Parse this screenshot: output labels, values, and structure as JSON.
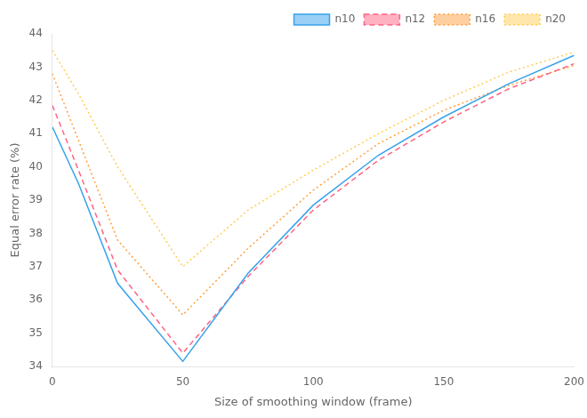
{
  "chart_data": {
    "type": "line",
    "xlabel": "Size of smoothing window (frame)",
    "ylabel": "Equal error rate (%)",
    "x": [
      0,
      10,
      25,
      50,
      75,
      100,
      125,
      150,
      175,
      200
    ],
    "series": [
      {
        "name": "n10",
        "values": [
          41.2,
          39.5,
          36.5,
          34.15,
          36.8,
          38.85,
          40.35,
          41.5,
          42.5,
          43.35
        ],
        "line_style": "solid"
      },
      {
        "name": "n12",
        "values": [
          41.85,
          39.9,
          36.9,
          34.4,
          36.7,
          38.7,
          40.2,
          41.35,
          42.35,
          43.1
        ],
        "line_style": "dashed"
      },
      {
        "name": "n16",
        "values": [
          42.8,
          40.8,
          37.8,
          35.55,
          37.55,
          39.3,
          40.7,
          41.7,
          42.45,
          43.05
        ],
        "line_style": "dotted"
      },
      {
        "name": "n20",
        "values": [
          43.5,
          42.2,
          40.0,
          37.0,
          38.7,
          39.9,
          41.0,
          42.0,
          42.85,
          43.45
        ],
        "line_style": "dotted"
      }
    ],
    "xlim": [
      0,
      200
    ],
    "ylim": [
      34,
      44
    ],
    "xticks": [
      0,
      50,
      100,
      150,
      200
    ],
    "yticks": [
      34,
      35,
      36,
      37,
      38,
      39,
      40,
      41,
      42,
      43,
      44
    ],
    "grid": false,
    "legend": "upper right"
  }
}
